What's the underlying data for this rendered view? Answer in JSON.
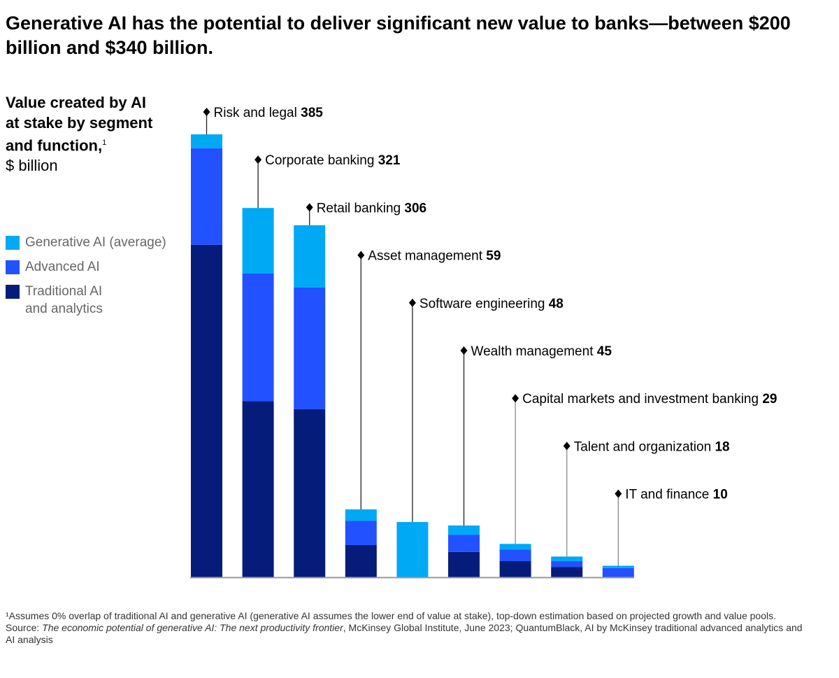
{
  "chart_data": {
    "type": "bar",
    "stacked": true,
    "title": "Generative AI has the potential to deliver significant new value to banks—between $200 billion and $340 billion.",
    "ylabel_bold": "Value created by AI at stake by segment and function,",
    "ylabel_sup": "1",
    "ylabel_unit": "$ billion",
    "categories": [
      "Risk and legal",
      "Corporate banking",
      "Retail banking",
      "Asset management",
      "Software engineering",
      "Wealth management",
      "Capital markets and investment banking",
      "Talent and organization",
      "IT and finance"
    ],
    "totals": [
      "385",
      "321",
      "306",
      "59",
      "48",
      "45",
      "29",
      "18",
      "10"
    ],
    "series": [
      {
        "name": "Traditional AI and analytics",
        "color": "#051C7A",
        "values": [
          289,
          153,
          146,
          28,
          0,
          22,
          14,
          9,
          0
        ]
      },
      {
        "name": "Advanced AI",
        "color": "#2251FF",
        "values": [
          84,
          111,
          106,
          21,
          0,
          15,
          10,
          5,
          8
        ]
      },
      {
        "name": "Generative  AI (average)",
        "color": "#00A9F4",
        "values": [
          12,
          57,
          54,
          10,
          48,
          8,
          5,
          4,
          2
        ]
      }
    ],
    "legend": [
      {
        "label": "Generative  AI (average)",
        "color": "#00A9F4"
      },
      {
        "label": "Advanced AI",
        "color": "#2251FF"
      },
      {
        "label": "Traditional AI",
        "label2": "and analytics",
        "color": "#051C7A"
      }
    ],
    "ylim": [
      0,
      385
    ]
  },
  "footnote": {
    "note": "¹Assumes 0% overlap of traditional AI and generative AI (generative AI assumes the lower end of value at stake), top-down estimation based on projected growth and value pools.",
    "source_prefix": "Source: ",
    "source_title": "The economic potential of generative AI: The next productivity frontier",
    "source_rest": ", McKinsey Global Institute, June 2023; QuantumBlack, AI by McKinsey traditional advanced analytics and AI analysis"
  }
}
